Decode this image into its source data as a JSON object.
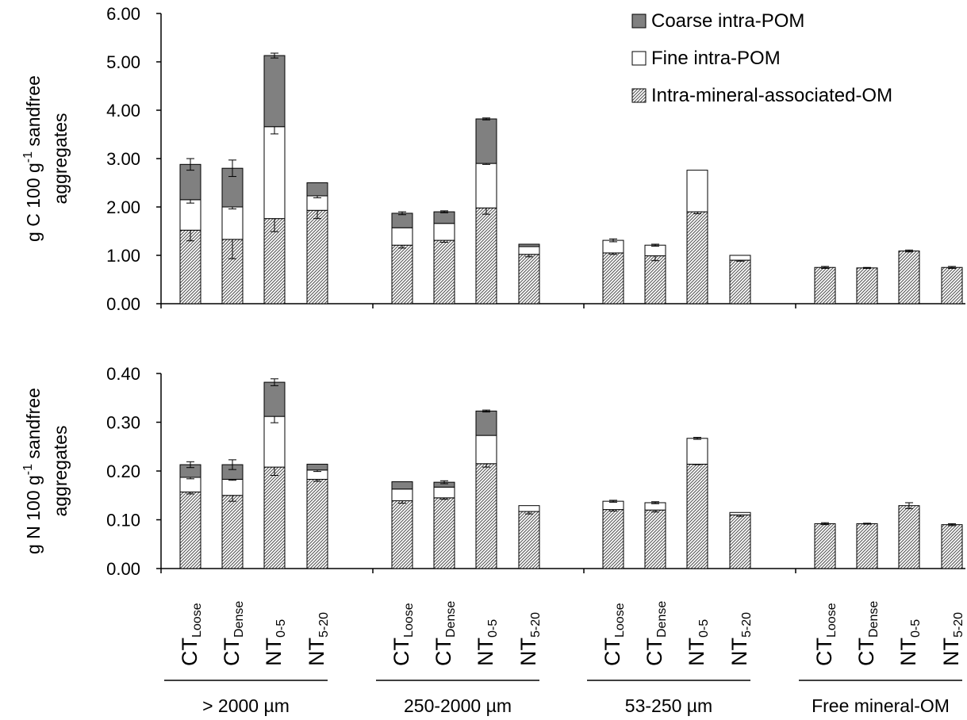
{
  "chart_data": [
    {
      "type": "bar",
      "stacked": true,
      "ylabel": {
        "prefix": "g C 100 g",
        "sup": "-1",
        "suffix": " sandfree",
        "line2": "aggregates"
      },
      "ylim": [
        0,
        6
      ],
      "yticks": [
        "0.00",
        "1.00",
        "2.00",
        "3.00",
        "4.00",
        "5.00",
        "6.00"
      ],
      "groups": [
        "> 2000 µm",
        "250-2000 µm",
        "53-250 µm",
        "Free mineral-OM"
      ],
      "series": [
        {
          "name": "Intra-mineral-associated-OM",
          "values": [
            [
              1.52,
              1.33,
              1.76,
              1.93
            ],
            [
              1.21,
              1.31,
              1.98,
              1.02
            ],
            [
              1.05,
              0.99,
              1.9,
              0.9
            ],
            [
              0.75,
              0.74,
              1.09,
              0.75
            ]
          ],
          "errors": [
            [
              0.22,
              0.4,
              0.27,
              0.17
            ],
            [
              0.06,
              0.04,
              0.13,
              0.05
            ],
            [
              0.03,
              0.1,
              0.04,
              0.02
            ],
            [
              0.02,
              0.01,
              0.02,
              0.02
            ]
          ]
        },
        {
          "name": "Fine intra-POM",
          "values": [
            [
              0.63,
              0.67,
              1.9,
              0.3
            ],
            [
              0.36,
              0.35,
              0.92,
              0.16
            ],
            [
              0.26,
              0.22,
              0.86,
              0.1
            ],
            [
              0,
              0,
              0,
              0
            ]
          ],
          "errors": [
            [
              0.07,
              0.04,
              0.15,
              0.04
            ],
            [
              0,
              0,
              0.02,
              0
            ],
            [
              0.03,
              0.02,
              0,
              0
            ],
            [
              0,
              0,
              0,
              0
            ]
          ]
        },
        {
          "name": "Coarse intra-POM",
          "values": [
            [
              0.73,
              0.8,
              1.47,
              0.27
            ],
            [
              0.3,
              0.24,
              0.92,
              0.05
            ],
            [
              0,
              0,
              0,
              0
            ],
            [
              0,
              0,
              0,
              0
            ]
          ],
          "errors": [
            [
              0.12,
              0.17,
              0.05,
              0
            ],
            [
              0.03,
              0.02,
              0.02,
              0
            ],
            [
              0,
              0,
              0,
              0
            ],
            [
              0,
              0,
              0,
              0
            ]
          ]
        }
      ]
    },
    {
      "type": "bar",
      "stacked": true,
      "ylabel": {
        "prefix": "g N 100 g",
        "sup": "-1",
        "suffix": " sandfree",
        "line2": "aggregates"
      },
      "ylim": [
        0,
        0.4
      ],
      "yticks": [
        "0.00",
        "0.10",
        "0.20",
        "0.30",
        "0.40"
      ],
      "groups": [
        "> 2000 µm",
        "250-2000 µm",
        "53-250 µm",
        "Free mineral-OM"
      ],
      "series": [
        {
          "name": "Intra-mineral-associated-OM",
          "values": [
            [
              0.157,
              0.15,
              0.208,
              0.183
            ],
            [
              0.139,
              0.145,
              0.215,
              0.117
            ],
            [
              0.121,
              0.12,
              0.214,
              0.11
            ],
            [
              0.092,
              0.092,
              0.129,
              0.09
            ]
          ],
          "errors": [
            [
              0.004,
              0.012,
              0.017,
              0.004
            ],
            [
              0.005,
              0.003,
              0.007,
              0.005
            ],
            [
              0.003,
              0.004,
              0.001,
              0.003
            ],
            [
              0.002,
              0.001,
              0.006,
              0.002
            ]
          ]
        },
        {
          "name": "Fine intra-POM",
          "values": [
            [
              0.03,
              0.033,
              0.104,
              0.019
            ],
            [
              0.024,
              0.022,
              0.058,
              0.012
            ],
            [
              0.017,
              0.015,
              0.053,
              0.005
            ],
            [
              0,
              0,
              0,
              0
            ]
          ],
          "errors": [
            [
              0.003,
              0.002,
              0.013,
              0.003
            ],
            [
              0,
              0,
              0,
              0
            ],
            [
              0.002,
              0.002,
              0.002,
              0
            ],
            [
              0,
              0,
              0,
              0
            ]
          ]
        },
        {
          "name": "Coarse intra-POM",
          "values": [
            [
              0.026,
              0.03,
              0.07,
              0.012
            ],
            [
              0.015,
              0.01,
              0.05,
              0
            ],
            [
              0,
              0,
              0,
              0
            ],
            [
              0,
              0,
              0,
              0
            ]
          ],
          "errors": [
            [
              0.006,
              0.01,
              0.007,
              0
            ],
            [
              0,
              0.003,
              0.002,
              0
            ],
            [
              0,
              0,
              0,
              0
            ],
            [
              0,
              0,
              0,
              0
            ]
          ]
        }
      ]
    }
  ],
  "categories": [
    {
      "main": "CT",
      "sub": "Loose"
    },
    {
      "main": "CT",
      "sub": "Dense"
    },
    {
      "main": "NT",
      "sub": "0-5"
    },
    {
      "main": "NT",
      "sub": "5-20"
    }
  ],
  "legend": {
    "position": "top-right",
    "items": [
      {
        "label": "Coarse intra-POM",
        "fill": "#808080"
      },
      {
        "label": "Fine intra-POM",
        "fill": "#ffffff"
      },
      {
        "label": "Intra-mineral-associated-OM",
        "fill": "hatch"
      }
    ]
  },
  "colors": {
    "coarse": "#808080",
    "fine": "#ffffff",
    "mineral_hatch": "#555555"
  }
}
